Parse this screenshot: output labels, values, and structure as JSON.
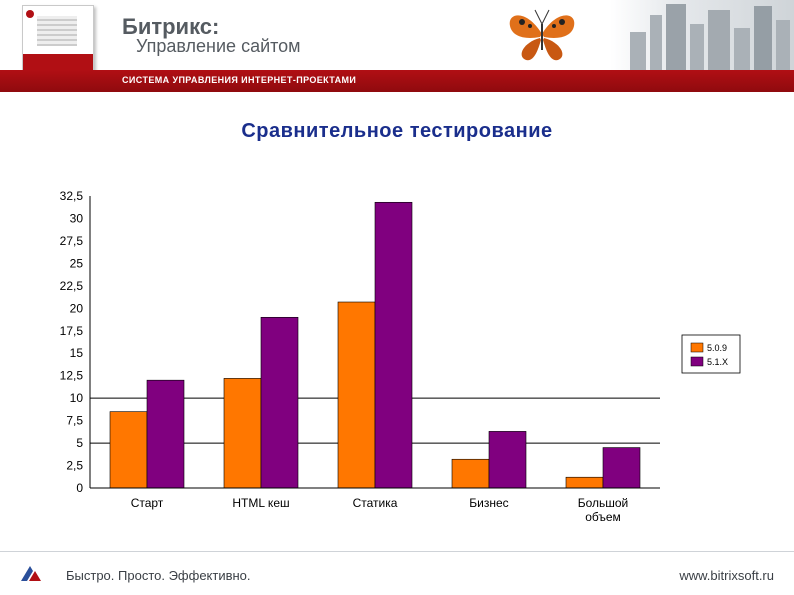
{
  "header": {
    "brand_line1": "Битрикс:",
    "brand_line2": "Управление сайтом",
    "tagline": "СИСТЕМА УПРАВЛЕНИЯ ИНТЕРНЕТ-ПРОЕКТАМИ",
    "accent_color": "#b10f14"
  },
  "slide_title": "Сравнительное тестирование",
  "chart_data": {
    "type": "bar",
    "categories": [
      "Старт",
      "HTML кеш",
      "Статика",
      "Бизнес",
      [
        "Большой",
        "объем"
      ]
    ],
    "series": [
      {
        "name": "5.0.9",
        "color": "#ff7700",
        "values": [
          8.5,
          12.2,
          20.7,
          3.2,
          1.2
        ]
      },
      {
        "name": "5.1.X",
        "color": "#80007f",
        "values": [
          12.0,
          19.0,
          31.8,
          6.3,
          4.5
        ]
      }
    ],
    "ylim": [
      0,
      32.5
    ],
    "yticks": [
      "0",
      "2,5",
      "5",
      "7,5",
      "10",
      "12,5",
      "15",
      "17,5",
      "20",
      "22,5",
      "25",
      "27,5",
      "30",
      "32,5"
    ],
    "gridlines": [
      5,
      10
    ],
    "legend_position": "right"
  },
  "footer": {
    "slogan": "Быстро. Просто. Эффективно.",
    "url": "www.bitrixsoft.ru"
  }
}
